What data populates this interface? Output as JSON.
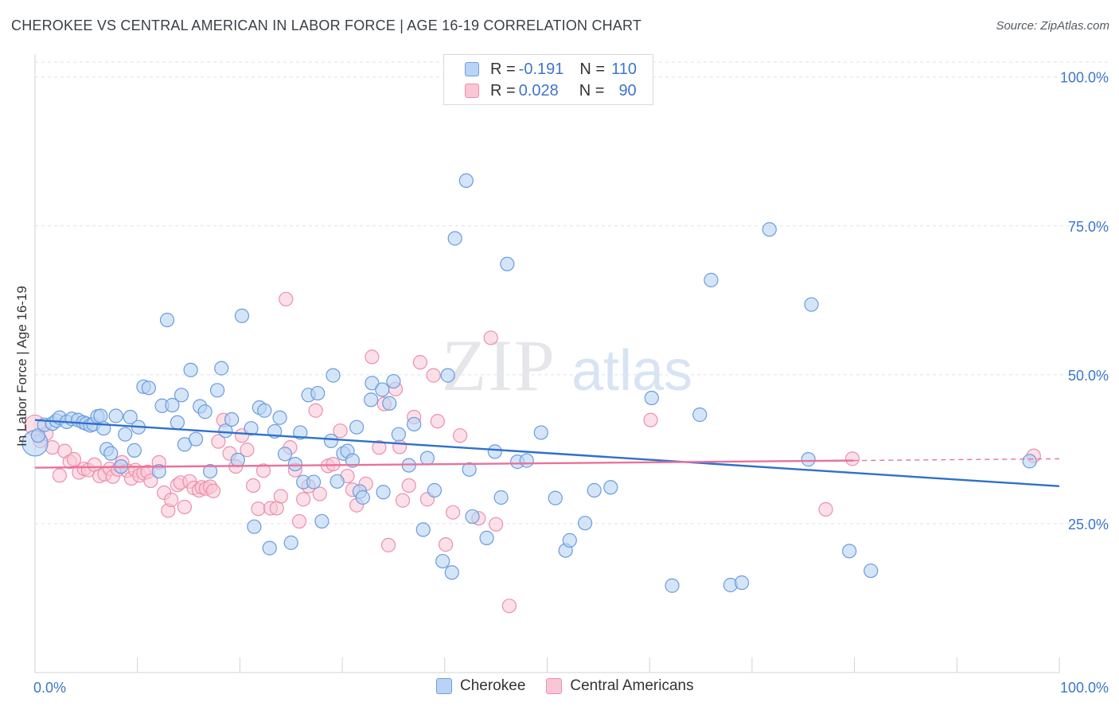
{
  "title": "CHEROKEE VS CENTRAL AMERICAN IN LABOR FORCE | AGE 16-19 CORRELATION CHART",
  "source": "Source: ZipAtlas.com",
  "legend": {
    "r_label": "R =",
    "n_label": "N =",
    "rows": [
      {
        "name": "Cherokee",
        "r": "-0.191",
        "n": "110",
        "fill": "#b9d3f4",
        "stroke": "#6e9fe0"
      },
      {
        "name": "Central Americans",
        "r": "0.028",
        "n": "90",
        "fill": "#f9c6d5",
        "stroke": "#ec8fae"
      }
    ]
  },
  "watermark": {
    "zip": "ZIP",
    "atlas": "atlas"
  },
  "colors": {
    "blue_fill": "#b9d3f4",
    "blue_stroke": "#6a9be0",
    "blue_line": "#2f6fce",
    "pink_fill": "#f9c6d5",
    "pink_stroke": "#ec8fae",
    "pink_line": "#e8729b",
    "tick_label": "#3d76c9",
    "grid": "#dde1e6"
  },
  "chart_data": {
    "type": "scatter",
    "title": "CHEROKEE VS CENTRAL AMERICAN IN LABOR FORCE | AGE 16-19 CORRELATION CHART",
    "xlabel": "",
    "ylabel": "In Labor Force | Age 16-19",
    "xlim": [
      0,
      100
    ],
    "ylim": [
      0,
      102.5
    ],
    "x_tick_labels": [
      "0.0%",
      "100.0%"
    ],
    "y_ticks": [
      25,
      50,
      75,
      100
    ],
    "y_tick_labels": [
      "25.0%",
      "50.0%",
      "75.0%",
      "100.0%"
    ],
    "grid": true,
    "legend_position": "top-center",
    "series": [
      {
        "name": "Cherokee",
        "r": -0.191,
        "n": 110,
        "trend": {
          "x": [
            0,
            100
          ],
          "y": [
            42.4,
            31.3
          ],
          "dashed_from": null
        },
        "points": [
          [
            0,
            38.5
          ],
          [
            0.3,
            39.8
          ],
          [
            0.9,
            41.6
          ],
          [
            1.7,
            41.8
          ],
          [
            2.1,
            42.3
          ],
          [
            2.4,
            42.8
          ],
          [
            3.1,
            42.1
          ],
          [
            3.6,
            42.6
          ],
          [
            4.2,
            42.4
          ],
          [
            4.7,
            42.0
          ],
          [
            5.0,
            41.8
          ],
          [
            5.4,
            41.5
          ],
          [
            5.7,
            41.7
          ],
          [
            6.1,
            43.0
          ],
          [
            6.4,
            43.1
          ],
          [
            6.7,
            41.0
          ],
          [
            7.0,
            37.5
          ],
          [
            7.4,
            36.8
          ],
          [
            7.9,
            43.1
          ],
          [
            8.4,
            34.6
          ],
          [
            8.8,
            40.0
          ],
          [
            9.3,
            42.9
          ],
          [
            9.7,
            37.3
          ],
          [
            10.1,
            41.2
          ],
          [
            10.6,
            48.0
          ],
          [
            11.1,
            47.8
          ],
          [
            12.1,
            33.8
          ],
          [
            12.4,
            44.8
          ],
          [
            12.9,
            59.2
          ],
          [
            13.4,
            44.9
          ],
          [
            13.9,
            42.0
          ],
          [
            14.3,
            46.6
          ],
          [
            14.6,
            38.3
          ],
          [
            15.2,
            50.8
          ],
          [
            15.7,
            39.2
          ],
          [
            16.1,
            44.7
          ],
          [
            16.6,
            43.8
          ],
          [
            17.1,
            33.8
          ],
          [
            17.8,
            47.4
          ],
          [
            18.2,
            51.1
          ],
          [
            18.6,
            40.6
          ],
          [
            19.2,
            42.5
          ],
          [
            19.8,
            35.7
          ],
          [
            20.2,
            59.9
          ],
          [
            21.1,
            41.0
          ],
          [
            21.4,
            24.5
          ],
          [
            21.9,
            44.5
          ],
          [
            22.4,
            44.0
          ],
          [
            22.9,
            20.9
          ],
          [
            23.4,
            40.5
          ],
          [
            23.9,
            42.8
          ],
          [
            24.4,
            36.7
          ],
          [
            25.0,
            21.8
          ],
          [
            25.4,
            35.0
          ],
          [
            25.9,
            40.3
          ],
          [
            26.2,
            32.0
          ],
          [
            26.7,
            46.6
          ],
          [
            27.2,
            32.0
          ],
          [
            27.6,
            46.9
          ],
          [
            28.0,
            25.4
          ],
          [
            28.9,
            38.9
          ],
          [
            29.1,
            49.9
          ],
          [
            29.5,
            32.1
          ],
          [
            30.1,
            36.8
          ],
          [
            30.5,
            37.2
          ],
          [
            31.0,
            35.6
          ],
          [
            31.4,
            41.2
          ],
          [
            31.7,
            30.4
          ],
          [
            32.0,
            29.4
          ],
          [
            32.8,
            45.8
          ],
          [
            32.9,
            48.6
          ],
          [
            33.9,
            47.5
          ],
          [
            34.0,
            30.3
          ],
          [
            34.6,
            45.2
          ],
          [
            35.0,
            48.9
          ],
          [
            35.5,
            40.0
          ],
          [
            36.5,
            34.8
          ],
          [
            37.0,
            41.7
          ],
          [
            37.9,
            24.0
          ],
          [
            38.3,
            36.0
          ],
          [
            39.0,
            30.6
          ],
          [
            39.8,
            18.7
          ],
          [
            40.3,
            49.9
          ],
          [
            40.7,
            16.8
          ],
          [
            41.0,
            72.9
          ],
          [
            42.1,
            82.6
          ],
          [
            42.4,
            34.1
          ],
          [
            42.7,
            26.2
          ],
          [
            44.1,
            22.6
          ],
          [
            44.9,
            37.1
          ],
          [
            45.5,
            29.4
          ],
          [
            46.1,
            68.6
          ],
          [
            47.1,
            35.4
          ],
          [
            48.0,
            35.6
          ],
          [
            49.4,
            40.3
          ],
          [
            50.8,
            29.3
          ],
          [
            51.8,
            20.5
          ],
          [
            52.2,
            22.2
          ],
          [
            53.7,
            25.1
          ],
          [
            54.6,
            30.6
          ],
          [
            56.2,
            31.1
          ],
          [
            60.2,
            46.1
          ],
          [
            62.2,
            14.6
          ],
          [
            64.9,
            43.3
          ],
          [
            66.0,
            65.9
          ],
          [
            67.9,
            14.7
          ],
          [
            69.0,
            15.1
          ],
          [
            71.7,
            74.4
          ],
          [
            75.5,
            35.8
          ],
          [
            75.8,
            61.8
          ],
          [
            79.5,
            20.4
          ],
          [
            81.6,
            17.1
          ],
          [
            97.1,
            35.5
          ]
        ]
      },
      {
        "name": "Central Americans",
        "r": 0.028,
        "n": 90,
        "trend": {
          "x": [
            0,
            100
          ],
          "y": [
            34.4,
            35.9
          ],
          "dashed_from": 79.9
        },
        "points": [
          [
            0,
            41.5
          ],
          [
            0.5,
            38.9
          ],
          [
            1.1,
            40.1
          ],
          [
            1.7,
            37.8
          ],
          [
            2.4,
            33.1
          ],
          [
            2.9,
            37.2
          ],
          [
            3.4,
            35.4
          ],
          [
            3.8,
            35.8
          ],
          [
            4.3,
            33.6
          ],
          [
            4.8,
            34.2
          ],
          [
            5.2,
            34.0
          ],
          [
            5.8,
            34.9
          ],
          [
            6.3,
            33.0
          ],
          [
            6.8,
            33.3
          ],
          [
            7.3,
            34.2
          ],
          [
            7.6,
            32.9
          ],
          [
            8.1,
            34.1
          ],
          [
            8.5,
            35.3
          ],
          [
            9.0,
            33.9
          ],
          [
            9.4,
            32.6
          ],
          [
            9.8,
            34.0
          ],
          [
            10.2,
            33.1
          ],
          [
            10.6,
            33.5
          ],
          [
            11.0,
            33.7
          ],
          [
            11.3,
            32.2
          ],
          [
            12.1,
            35.3
          ],
          [
            12.6,
            30.2
          ],
          [
            13.0,
            27.2
          ],
          [
            13.3,
            29.0
          ],
          [
            13.9,
            31.5
          ],
          [
            14.2,
            31.9
          ],
          [
            14.6,
            27.8
          ],
          [
            15.1,
            32.1
          ],
          [
            15.5,
            31.0
          ],
          [
            16.0,
            30.6
          ],
          [
            16.3,
            31.1
          ],
          [
            16.7,
            30.9
          ],
          [
            17.1,
            31.2
          ],
          [
            17.4,
            30.5
          ],
          [
            17.9,
            38.8
          ],
          [
            18.4,
            42.4
          ],
          [
            19.0,
            36.8
          ],
          [
            19.6,
            34.6
          ],
          [
            20.2,
            39.8
          ],
          [
            20.7,
            37.4
          ],
          [
            21.3,
            31.4
          ],
          [
            21.8,
            27.5
          ],
          [
            22.3,
            33.9
          ],
          [
            23.0,
            27.6
          ],
          [
            23.6,
            27.6
          ],
          [
            24.0,
            29.6
          ],
          [
            24.5,
            62.7
          ],
          [
            24.9,
            37.8
          ],
          [
            25.4,
            34.0
          ],
          [
            25.8,
            25.4
          ],
          [
            26.2,
            29.1
          ],
          [
            26.7,
            31.3
          ],
          [
            27.4,
            44.0
          ],
          [
            27.8,
            30.0
          ],
          [
            28.6,
            34.7
          ],
          [
            29.1,
            35.0
          ],
          [
            29.8,
            40.6
          ],
          [
            30.5,
            33.0
          ],
          [
            31.0,
            30.7
          ],
          [
            31.4,
            28.1
          ],
          [
            32.3,
            31.7
          ],
          [
            32.9,
            53.0
          ],
          [
            33.6,
            37.8
          ],
          [
            34.1,
            45.1
          ],
          [
            34.5,
            21.4
          ],
          [
            35.2,
            47.6
          ],
          [
            35.6,
            37.9
          ],
          [
            35.9,
            28.9
          ],
          [
            36.5,
            31.4
          ],
          [
            37.0,
            42.9
          ],
          [
            37.6,
            52.1
          ],
          [
            38.3,
            29.1
          ],
          [
            38.9,
            49.9
          ],
          [
            39.3,
            42.2
          ],
          [
            40.1,
            21.5
          ],
          [
            40.8,
            26.9
          ],
          [
            41.5,
            39.8
          ],
          [
            43.3,
            25.9
          ],
          [
            44.5,
            56.2
          ],
          [
            45.0,
            24.9
          ],
          [
            46.3,
            11.2
          ],
          [
            60.1,
            42.4
          ],
          [
            77.2,
            27.4
          ],
          [
            97.5,
            36.4
          ],
          [
            79.8,
            35.9
          ]
        ]
      }
    ]
  }
}
